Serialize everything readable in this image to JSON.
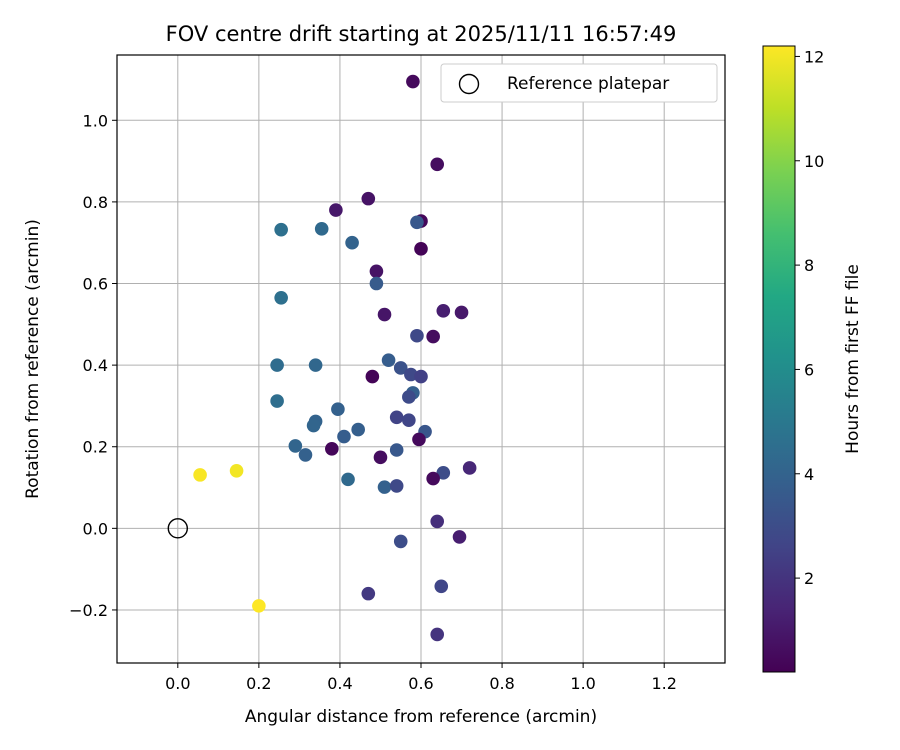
{
  "chart_data": {
    "type": "scatter",
    "title": "FOV centre drift starting at 2025/11/11 16:57:49",
    "xlabel": "Angular distance from reference (arcmin)",
    "ylabel": "Rotation from reference (arcmin)",
    "xlim": [
      -0.15,
      1.35
    ],
    "ylim": [
      -0.33,
      1.16
    ],
    "x_ticks": [
      0.0,
      0.2,
      0.4,
      0.6,
      0.8,
      1.0,
      1.2
    ],
    "x_tick_labels": [
      "0.0",
      "0.2",
      "0.4",
      "0.6",
      "0.8",
      "1.0",
      "1.2"
    ],
    "y_ticks": [
      -0.2,
      0.0,
      0.2,
      0.4,
      0.6,
      0.8,
      1.0
    ],
    "y_tick_labels": [
      "−0.2",
      "0.0",
      "0.2",
      "0.4",
      "0.6",
      "0.8",
      "1.0"
    ],
    "grid": true,
    "legend": {
      "placement": "top-right",
      "entries": [
        "Reference platepar"
      ]
    },
    "reference_point": {
      "x": 0.0,
      "y": 0.0
    },
    "colorbar": {
      "label": "Hours from first FF file",
      "colormap": "viridis",
      "range": [
        0.2,
        12.2
      ],
      "ticks": [
        2,
        4,
        6,
        8,
        10,
        12
      ],
      "tick_labels": [
        "2",
        "4",
        "6",
        "8",
        "10",
        "12"
      ]
    },
    "points": [
      {
        "x": 0.58,
        "y": 1.095,
        "c": 0.5
      },
      {
        "x": 0.64,
        "y": 0.892,
        "c": 0.6
      },
      {
        "x": 0.47,
        "y": 0.808,
        "c": 0.8
      },
      {
        "x": 0.39,
        "y": 0.78,
        "c": 1.0
      },
      {
        "x": 0.6,
        "y": 0.753,
        "c": 0.4
      },
      {
        "x": 0.59,
        "y": 0.75,
        "c": 3.5
      },
      {
        "x": 0.6,
        "y": 0.685,
        "c": 0.3
      },
      {
        "x": 0.49,
        "y": 0.63,
        "c": 0.8
      },
      {
        "x": 0.49,
        "y": 0.6,
        "c": 3.6
      },
      {
        "x": 0.51,
        "y": 0.524,
        "c": 0.9
      },
      {
        "x": 0.655,
        "y": 0.533,
        "c": 1.2
      },
      {
        "x": 0.7,
        "y": 0.529,
        "c": 1.0
      },
      {
        "x": 0.59,
        "y": 0.472,
        "c": 2.8
      },
      {
        "x": 0.63,
        "y": 0.47,
        "c": 0.6
      },
      {
        "x": 0.52,
        "y": 0.412,
        "c": 3.7
      },
      {
        "x": 0.55,
        "y": 0.393,
        "c": 3.2
      },
      {
        "x": 0.575,
        "y": 0.377,
        "c": 2.8
      },
      {
        "x": 0.6,
        "y": 0.372,
        "c": 2.5
      },
      {
        "x": 0.48,
        "y": 0.372,
        "c": 0.3
      },
      {
        "x": 0.58,
        "y": 0.332,
        "c": 3.8
      },
      {
        "x": 0.57,
        "y": 0.322,
        "c": 2.9
      },
      {
        "x": 0.54,
        "y": 0.272,
        "c": 2.6
      },
      {
        "x": 0.57,
        "y": 0.265,
        "c": 2.7
      },
      {
        "x": 0.61,
        "y": 0.237,
        "c": 3.4
      },
      {
        "x": 0.595,
        "y": 0.218,
        "c": 0.5
      },
      {
        "x": 0.54,
        "y": 0.192,
        "c": 3.5
      },
      {
        "x": 0.5,
        "y": 0.174,
        "c": 0.6
      },
      {
        "x": 0.72,
        "y": 0.148,
        "c": 1.5
      },
      {
        "x": 0.655,
        "y": 0.136,
        "c": 3.0
      },
      {
        "x": 0.63,
        "y": 0.122,
        "c": 0.5
      },
      {
        "x": 0.51,
        "y": 0.101,
        "c": 3.9
      },
      {
        "x": 0.54,
        "y": 0.104,
        "c": 2.8
      },
      {
        "x": 0.64,
        "y": 0.017,
        "c": 1.8
      },
      {
        "x": 0.695,
        "y": -0.021,
        "c": 1.2
      },
      {
        "x": 0.55,
        "y": -0.032,
        "c": 3.0
      },
      {
        "x": 0.65,
        "y": -0.142,
        "c": 2.7
      },
      {
        "x": 0.47,
        "y": -0.16,
        "c": 2.2
      },
      {
        "x": 0.64,
        "y": -0.26,
        "c": 2.0
      },
      {
        "x": 0.255,
        "y": 0.732,
        "c": 4.6
      },
      {
        "x": 0.355,
        "y": 0.734,
        "c": 4.3
      },
      {
        "x": 0.43,
        "y": 0.7,
        "c": 4.0
      },
      {
        "x": 0.255,
        "y": 0.565,
        "c": 4.6
      },
      {
        "x": 0.245,
        "y": 0.4,
        "c": 4.4
      },
      {
        "x": 0.34,
        "y": 0.4,
        "c": 4.2
      },
      {
        "x": 0.245,
        "y": 0.312,
        "c": 4.5
      },
      {
        "x": 0.395,
        "y": 0.292,
        "c": 3.9
      },
      {
        "x": 0.34,
        "y": 0.262,
        "c": 4.0
      },
      {
        "x": 0.335,
        "y": 0.252,
        "c": 4.1
      },
      {
        "x": 0.445,
        "y": 0.242,
        "c": 3.8
      },
      {
        "x": 0.41,
        "y": 0.225,
        "c": 3.7
      },
      {
        "x": 0.29,
        "y": 0.202,
        "c": 4.1
      },
      {
        "x": 0.315,
        "y": 0.18,
        "c": 3.9
      },
      {
        "x": 0.38,
        "y": 0.195,
        "c": 0.4
      },
      {
        "x": 0.42,
        "y": 0.12,
        "c": 4.3
      },
      {
        "x": 0.055,
        "y": 0.131,
        "c": 12.1
      },
      {
        "x": 0.145,
        "y": 0.141,
        "c": 12.0
      },
      {
        "x": 0.2,
        "y": -0.19,
        "c": 12.2
      }
    ]
  }
}
